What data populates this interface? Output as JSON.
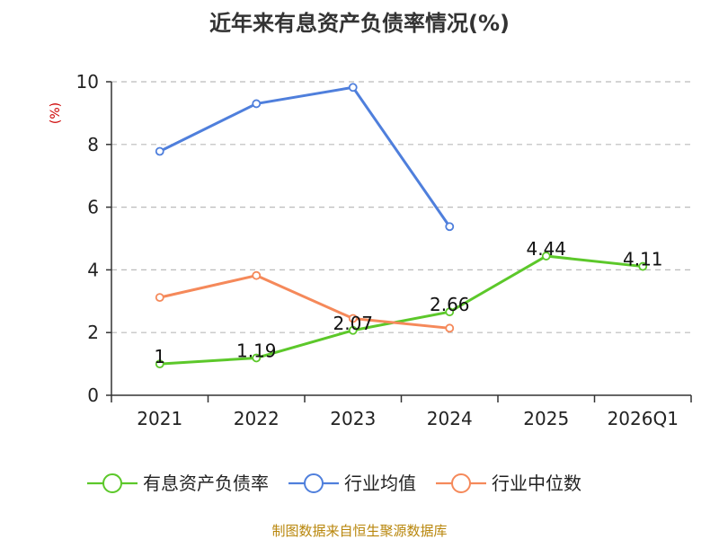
{
  "chart_data": {
    "type": "line",
    "title": "近年来有息资产负债率情况(%)",
    "ylabel": "(%)",
    "xlabel": "",
    "categories": [
      "2021",
      "2022",
      "2023",
      "2024",
      "2025",
      "2026Q1"
    ],
    "ylim": [
      0,
      10
    ],
    "yticks": [
      0,
      2,
      4,
      6,
      8,
      10
    ],
    "grid": true,
    "legend_position": "bottom",
    "series": [
      {
        "name": "有息资产负债率",
        "color": "#5cc82a",
        "values": [
          1,
          1.19,
          2.07,
          2.66,
          4.44,
          4.11
        ],
        "data_labels": [
          "1",
          "1.19",
          "2.07",
          "2.66",
          "4.44",
          "4.11"
        ]
      },
      {
        "name": "行业均值",
        "color": "#4f7fdc",
        "values": [
          7.78,
          9.3,
          9.82,
          5.38,
          null,
          null
        ]
      },
      {
        "name": "行业中位数",
        "color": "#f5895a",
        "values": [
          3.12,
          3.82,
          2.45,
          2.14,
          null,
          null
        ]
      }
    ],
    "source": "制图数据来自恒生聚源数据库"
  }
}
